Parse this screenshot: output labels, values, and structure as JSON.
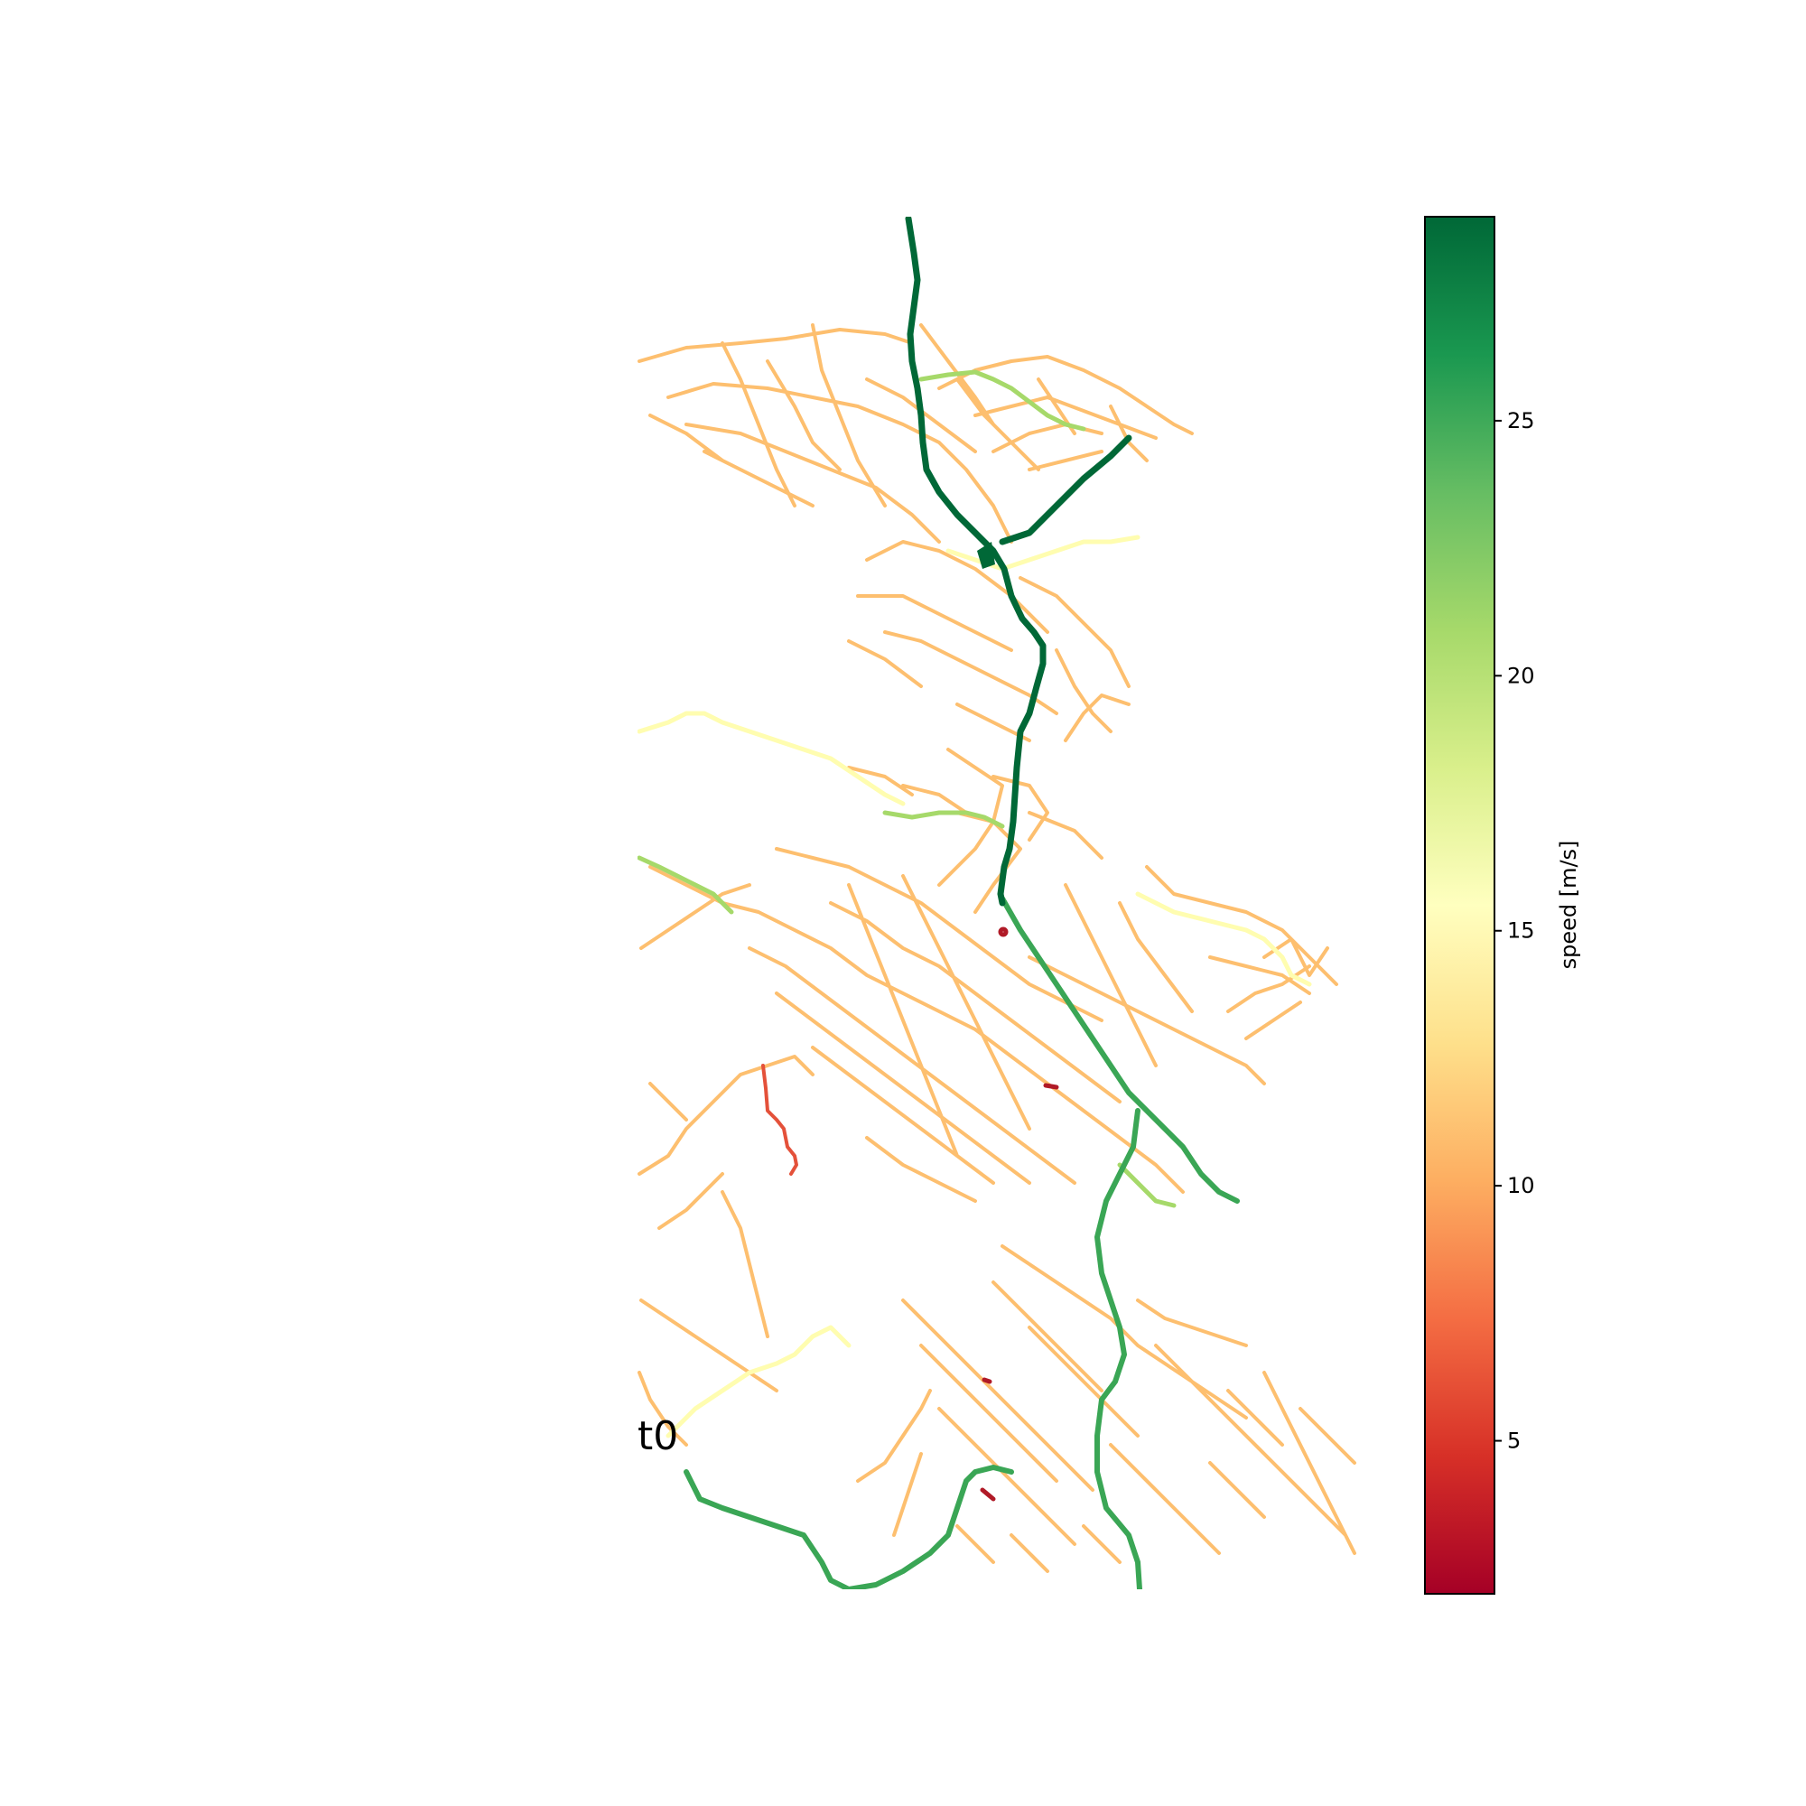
{
  "map": {
    "label": "t0",
    "road_colors": {
      "residential": "#fdbf6f",
      "motorway": "#006837",
      "trunk": "#3aa655",
      "primary": "#a6d96a",
      "secondary": "#fffdb0",
      "slow": "#e4513a",
      "very_slow": "#b01a27"
    }
  },
  "colorbar": {
    "label": "speed [m/s]",
    "range": [
      2,
      29
    ],
    "ticks": [
      5,
      10,
      15,
      20,
      25
    ],
    "colormap": "RdYlGn",
    "stops": [
      "#a50026",
      "#d73027",
      "#f46d43",
      "#fdae61",
      "#fee08b",
      "#ffffbf",
      "#d9ef8b",
      "#a6d96a",
      "#66bd63",
      "#1a9850",
      "#006837"
    ]
  }
}
